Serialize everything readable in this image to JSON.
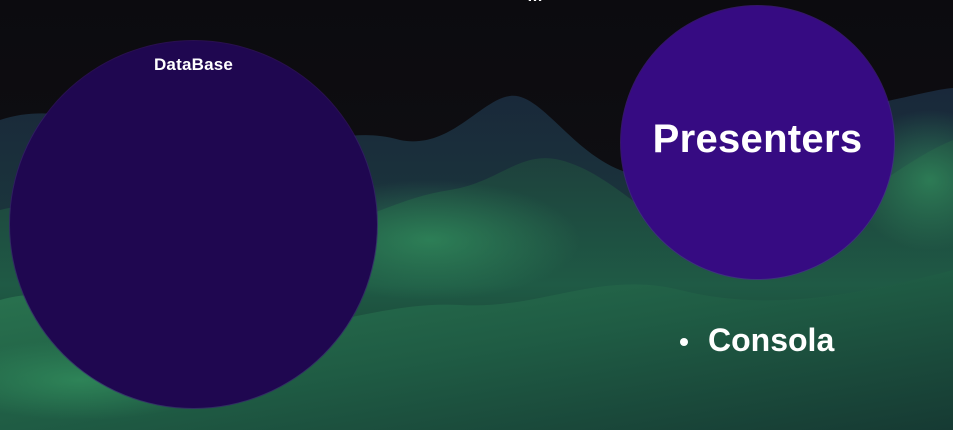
{
  "slide": {
    "top_fragment": "…"
  },
  "database_circle": {
    "label": "DataBase",
    "color": "#1f0750"
  },
  "presenters_circle": {
    "label": "Presenters",
    "color": "#360b82"
  },
  "bullets": [
    {
      "label": "Consola"
    }
  ],
  "background": {
    "sky": "#0c0b0f",
    "terrain_colors": [
      "#1c4a3a",
      "#2d7a52",
      "#163034"
    ]
  }
}
